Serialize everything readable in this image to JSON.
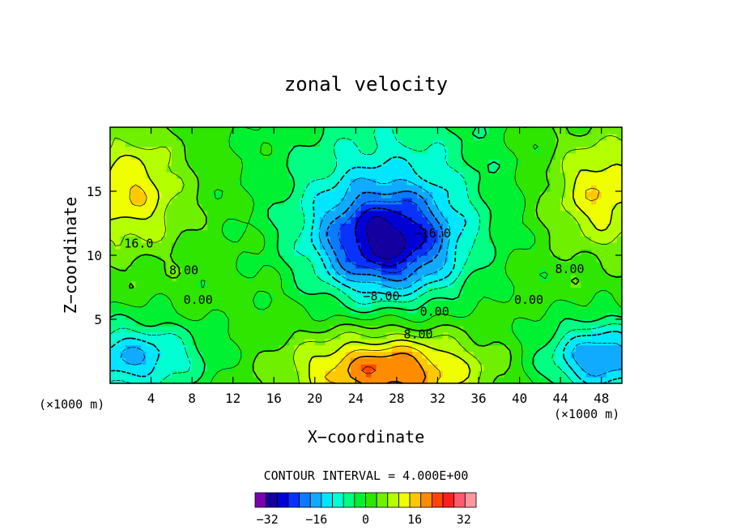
{
  "chart_data": {
    "type": "heatmap",
    "title": "zonal velocity",
    "xlabel": "X−coordinate",
    "ylabel": "Z−coordinate",
    "x_multiplier_label_left": "(×1000 m)",
    "x_multiplier_label_right": "(×1000 m)",
    "xlim": [
      0,
      50
    ],
    "ylim": [
      0,
      20
    ],
    "x_ticks": [
      4,
      8,
      12,
      16,
      20,
      24,
      28,
      32,
      36,
      40,
      44,
      48
    ],
    "y_ticks": [
      5,
      10,
      15
    ],
    "contour_interval_text": "CONTOUR INTERVAL = 4.000E+00",
    "contour_interval": 4,
    "contour_labels": [
      {
        "text": "16.0",
        "x": 2.8,
        "y": 10.6
      },
      {
        "text": "8.00",
        "x": 7.2,
        "y": 8.5
      },
      {
        "text": "0.00",
        "x": 8.6,
        "y": 6.2
      },
      {
        "text": "−8.00",
        "x": 26.5,
        "y": 6.5
      },
      {
        "text": "0.00",
        "x": 31.7,
        "y": 5.3
      },
      {
        "text": "8.00",
        "x": 30.1,
        "y": 3.5
      },
      {
        "text": "−16.0",
        "x": 31.5,
        "y": 11.4
      },
      {
        "text": "8.00",
        "x": 44.9,
        "y": 8.6
      },
      {
        "text": "0.00",
        "x": 40.9,
        "y": 6.2
      }
    ],
    "colorbar": {
      "min": -36,
      "max": 36,
      "step": 4,
      "tick_labels": [
        "−32",
        "−16",
        "0",
        "16",
        "32"
      ],
      "tick_values": [
        -32,
        -16,
        0,
        16,
        32
      ],
      "colors": [
        "#7a00b4",
        "#1400a0",
        "#0000d6",
        "#0a32ff",
        "#0a7aff",
        "#10aaff",
        "#00e6ff",
        "#00ffd2",
        "#00ff82",
        "#00f032",
        "#2ee600",
        "#6ef000",
        "#b4ff00",
        "#f0ff00",
        "#ffc800",
        "#ff8c00",
        "#ff4600",
        "#ff1e1e",
        "#ff5a6e",
        "#ff96a0"
      ]
    },
    "field_features": [
      {
        "x": 2,
        "y": 15,
        "amp": 14,
        "sx": 3.5,
        "sy": 3
      },
      {
        "x": 48,
        "y": 15,
        "amp": 14,
        "sx": 3.5,
        "sy": 3
      },
      {
        "x": 27,
        "y": 11,
        "amp": -32,
        "sx": 5,
        "sy": 3
      },
      {
        "x": 27,
        "y": 1,
        "amp": 22,
        "sx": 6,
        "sy": 2
      },
      {
        "x": 2,
        "y": 2,
        "amp": -18,
        "sx": 5,
        "sy": 2
      },
      {
        "x": 48,
        "y": 2,
        "amp": -22,
        "sx": 4,
        "sy": 2
      },
      {
        "x": 27,
        "y": 17,
        "amp": -10,
        "sx": 8,
        "sy": 5
      }
    ],
    "field_base": 6
  }
}
